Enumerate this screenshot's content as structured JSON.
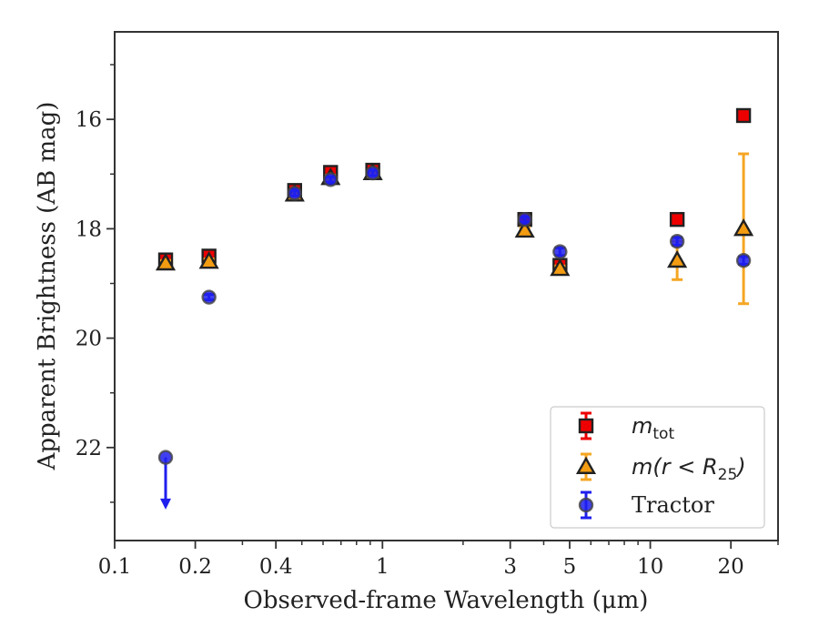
{
  "chart_data": {
    "type": "scatter",
    "title": "",
    "xlabel": "Observed-frame Wavelength (μm)",
    "ylabel": "Apparent Brightness (AB mag)",
    "x_scale": "log",
    "xlim": [
      0.1,
      30
    ],
    "ylim": [
      23.7,
      14.4
    ],
    "y_inverted": true,
    "x_ticks": [
      {
        "value": 0.1,
        "label": "0.1"
      },
      {
        "value": 0.2,
        "label": "0.2"
      },
      {
        "value": 0.4,
        "label": "0.4"
      },
      {
        "value": 1,
        "label": "1"
      },
      {
        "value": 3,
        "label": "3"
      },
      {
        "value": 5,
        "label": "5"
      },
      {
        "value": 10,
        "label": "10"
      },
      {
        "value": 20,
        "label": "20"
      }
    ],
    "y_ticks": [
      {
        "value": 16,
        "label": "16"
      },
      {
        "value": 18,
        "label": "18"
      },
      {
        "value": 20,
        "label": "20"
      },
      {
        "value": 22,
        "label": "22"
      }
    ],
    "grid": false,
    "legend_position": "bottom-right",
    "series": [
      {
        "name": "m_tot",
        "marker": "square",
        "color": "#ee0000",
        "errcolor": "#ee0000",
        "points": [
          {
            "x": 0.155,
            "y": 18.57,
            "err": 0.07
          },
          {
            "x": 0.225,
            "y": 18.5,
            "err": 0.05
          },
          {
            "x": 0.47,
            "y": 17.3,
            "err": 0.05
          },
          {
            "x": 0.64,
            "y": 16.97,
            "err": 0.05
          },
          {
            "x": 0.92,
            "y": 16.93,
            "err": 0.05
          },
          {
            "x": 3.4,
            "y": 17.83,
            "err": 0.05
          },
          {
            "x": 4.6,
            "y": 18.67,
            "err": 0.05
          },
          {
            "x": 12.6,
            "y": 17.83,
            "err": 0.05
          },
          {
            "x": 22.3,
            "y": 15.93,
            "err": 0.05
          }
        ]
      },
      {
        "name": "m(r < R25)",
        "marker": "triangle",
        "color": "#f39c12",
        "errcolor": "#f5a623",
        "points": [
          {
            "x": 0.155,
            "y": 18.63,
            "err": 0.05
          },
          {
            "x": 0.225,
            "y": 18.6,
            "err": 0.05
          },
          {
            "x": 0.47,
            "y": 17.37,
            "err": 0.05
          },
          {
            "x": 0.64,
            "y": 17.07,
            "err": 0.05
          },
          {
            "x": 0.92,
            "y": 16.98,
            "err": 0.05
          },
          {
            "x": 3.4,
            "y": 18.03,
            "err": 0.05
          },
          {
            "x": 4.6,
            "y": 18.73,
            "err": 0.05
          },
          {
            "x": 12.6,
            "y": 18.58,
            "err": 0.35
          },
          {
            "x": 22.3,
            "y": 18.0,
            "err": 1.37
          }
        ]
      },
      {
        "name": "Tractor",
        "marker": "circle",
        "color": "#1f1fee",
        "errcolor": "#1f1fee",
        "points": [
          {
            "x": 0.155,
            "y": 22.18,
            "err": 0,
            "upper_limit": true,
            "limit_to": 23.1
          },
          {
            "x": 0.225,
            "y": 19.25,
            "err": 0.05
          },
          {
            "x": 0.47,
            "y": 17.35,
            "err": 0.05
          },
          {
            "x": 0.64,
            "y": 17.1,
            "err": 0.05
          },
          {
            "x": 0.92,
            "y": 16.98,
            "err": 0.05
          },
          {
            "x": 3.4,
            "y": 17.83,
            "err": 0.05
          },
          {
            "x": 4.6,
            "y": 18.42,
            "err": 0.07
          },
          {
            "x": 12.6,
            "y": 18.23,
            "err": 0.07
          },
          {
            "x": 22.3,
            "y": 18.58,
            "err": 0.07
          }
        ]
      }
    ],
    "legend": [
      {
        "marker": "square",
        "base": "m",
        "sub": "tot",
        "plain": "",
        "color": "#ee0000"
      },
      {
        "marker": "triangle",
        "base": "m(r < R",
        "sub": "25",
        "tail": ")",
        "plain": "",
        "color": "#f39c12"
      },
      {
        "marker": "circle",
        "base": "",
        "sub": "",
        "plain": "Tractor",
        "color": "#1f1fee"
      }
    ]
  }
}
